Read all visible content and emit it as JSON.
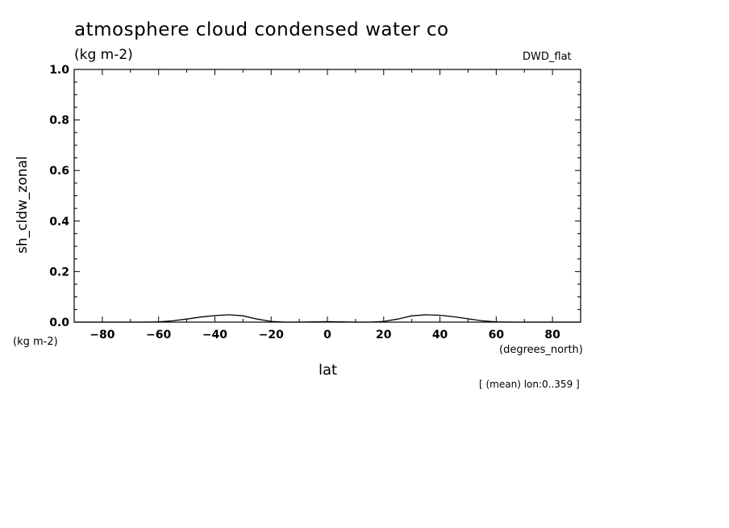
{
  "chart_data": {
    "type": "line",
    "title": "atmosphere cloud condensed water co",
    "units": "(kg m-2)",
    "model": "DWD_flat",
    "ylabel": "sh_cldw_zonal",
    "yunits": "(kg m-2)",
    "xlabel": "lat",
    "xunits": "(degrees_north)",
    "footnote": "[ (mean) lon:0..359 ]",
    "xlim": [
      -90,
      90
    ],
    "ylim": [
      0,
      1
    ],
    "xticks": [
      -80,
      -60,
      -40,
      -20,
      0,
      20,
      40,
      60,
      80
    ],
    "xtick_labels": [
      "-80",
      "-60",
      "-40",
      "-20",
      "0",
      "20",
      "40",
      "60",
      "80"
    ],
    "yticks": [
      0,
      0.2,
      0.4,
      0.6,
      0.8,
      1.0
    ],
    "ytick_labels": [
      "0.0",
      "0.2",
      "0.4",
      "0.6",
      "0.8",
      "1.0"
    ],
    "series": [
      {
        "x": [
          -90,
          -75,
          -65,
          -60,
          -55,
          -50,
          -45,
          -40,
          -35,
          -30,
          -25,
          -20,
          -15,
          -10,
          -5,
          0,
          5,
          10,
          15,
          20,
          25,
          30,
          35,
          40,
          45,
          50,
          55,
          60,
          65,
          75,
          90
        ],
        "values": [
          0,
          0,
          0,
          0.001,
          0.005,
          0.012,
          0.02,
          0.026,
          0.029,
          0.025,
          0.012,
          0.003,
          0,
          0,
          0.001,
          0.002,
          0.001,
          0,
          0,
          0.003,
          0.012,
          0.025,
          0.029,
          0.027,
          0.021,
          0.013,
          0.005,
          0.001,
          0,
          0,
          0
        ]
      }
    ]
  }
}
